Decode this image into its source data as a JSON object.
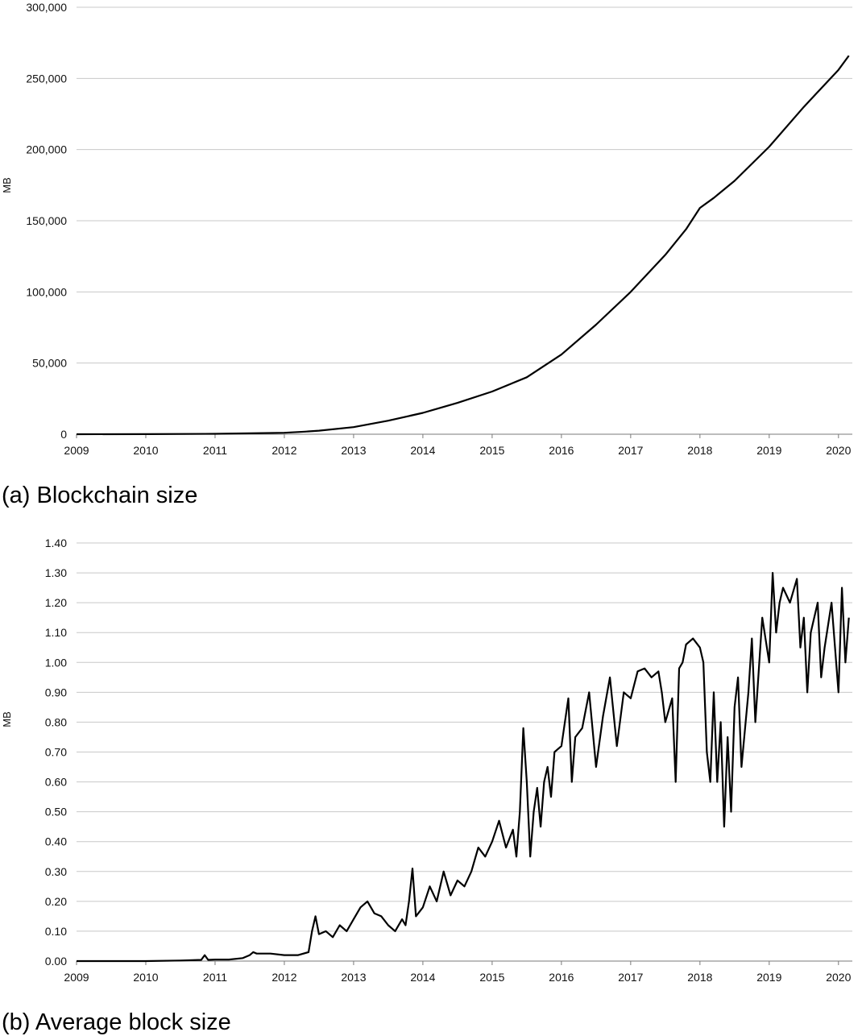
{
  "chart_data": [
    {
      "type": "line",
      "caption": "(a) Blockchain size",
      "ylabel": "MB",
      "xlabel": "",
      "ylim": [
        0,
        300000
      ],
      "xlim": [
        2009,
        2020.2
      ],
      "grid": true,
      "y_ticks": [
        0,
        50000,
        100000,
        150000,
        200000,
        250000,
        300000
      ],
      "y_tick_labels": [
        "0",
        "50,000",
        "100,000",
        "150,000",
        "200,000",
        "250,000",
        "300,000"
      ],
      "x_ticks": [
        2009,
        2010,
        2011,
        2012,
        2013,
        2014,
        2015,
        2016,
        2017,
        2018,
        2019,
        2020
      ],
      "x_tick_labels": [
        "2009",
        "2010",
        "2011",
        "2012",
        "2013",
        "2014",
        "2015",
        "2016",
        "2017",
        "2018",
        "2019",
        "2020"
      ],
      "series": [
        {
          "x": [
            2009,
            2010,
            2011,
            2011.5,
            2012,
            2012.3,
            2012.5,
            2013,
            2013.5,
            2014,
            2014.5,
            2015,
            2015.5,
            2016,
            2016.5,
            2017,
            2017.5,
            2017.8,
            2018,
            2018.2,
            2018.5,
            2019,
            2019.5,
            2020,
            2020.15
          ],
          "y": [
            0,
            50,
            300,
            600,
            1000,
            1800,
            2500,
            5000,
            9500,
            15000,
            22000,
            30000,
            40000,
            56000,
            77000,
            100000,
            126000,
            144000,
            159000,
            166000,
            178000,
            202000,
            230000,
            256000,
            266000
          ]
        }
      ]
    },
    {
      "type": "line",
      "caption": "(b) Average block size",
      "ylabel": "MB",
      "xlabel": "",
      "ylim": [
        0,
        1.4
      ],
      "xlim": [
        2009,
        2020.2
      ],
      "grid": true,
      "y_ticks": [
        0,
        0.1,
        0.2,
        0.3,
        0.4,
        0.5,
        0.6,
        0.7,
        0.8,
        0.9,
        1.0,
        1.1,
        1.2,
        1.3,
        1.4
      ],
      "y_tick_labels": [
        "0.00",
        "0.10",
        "0.20",
        "0.30",
        "0.40",
        "0.50",
        "0.60",
        "0.70",
        "0.80",
        "0.90",
        "1.00",
        "1.10",
        "1.20",
        "1.30",
        "1.40"
      ],
      "x_ticks": [
        2009,
        2010,
        2011,
        2012,
        2013,
        2014,
        2015,
        2016,
        2017,
        2018,
        2019,
        2020
      ],
      "x_tick_labels": [
        "2009",
        "2010",
        "2011",
        "2012",
        "2013",
        "2014",
        "2015",
        "2016",
        "2017",
        "2018",
        "2019",
        "2020"
      ],
      "series": [
        {
          "x": [
            2009,
            2009.5,
            2010,
            2010.5,
            2010.8,
            2010.85,
            2010.9,
            2011,
            2011.2,
            2011.4,
            2011.5,
            2011.55,
            2011.6,
            2011.8,
            2012,
            2012.2,
            2012.35,
            2012.4,
            2012.45,
            2012.5,
            2012.6,
            2012.7,
            2012.8,
            2012.9,
            2013,
            2013.1,
            2013.2,
            2013.3,
            2013.4,
            2013.5,
            2013.6,
            2013.7,
            2013.75,
            2013.8,
            2013.85,
            2013.9,
            2014,
            2014.1,
            2014.2,
            2014.3,
            2014.4,
            2014.5,
            2014.6,
            2014.7,
            2014.8,
            2014.9,
            2015,
            2015.1,
            2015.2,
            2015.3,
            2015.35,
            2015.4,
            2015.45,
            2015.5,
            2015.55,
            2015.6,
            2015.65,
            2015.7,
            2015.75,
            2015.8,
            2015.85,
            2015.9,
            2016,
            2016.05,
            2016.1,
            2016.15,
            2016.2,
            2016.3,
            2016.4,
            2016.5,
            2016.6,
            2016.7,
            2016.8,
            2016.9,
            2017,
            2017.1,
            2017.2,
            2017.3,
            2017.4,
            2017.45,
            2017.5,
            2017.6,
            2017.65,
            2017.7,
            2017.75,
            2017.8,
            2017.9,
            2018,
            2018.05,
            2018.1,
            2018.15,
            2018.2,
            2018.25,
            2018.3,
            2018.35,
            2018.4,
            2018.45,
            2018.5,
            2018.55,
            2018.6,
            2018.7,
            2018.75,
            2018.8,
            2018.9,
            2019,
            2019.05,
            2019.1,
            2019.15,
            2019.2,
            2019.3,
            2019.4,
            2019.45,
            2019.5,
            2019.55,
            2019.6,
            2019.7,
            2019.75,
            2019.8,
            2019.9,
            2020,
            2020.05,
            2020.1,
            2020.15
          ],
          "y": [
            0,
            0,
            0,
            0.002,
            0.004,
            0.02,
            0.004,
            0.005,
            0.005,
            0.01,
            0.02,
            0.03,
            0.025,
            0.025,
            0.02,
            0.02,
            0.03,
            0.1,
            0.15,
            0.09,
            0.1,
            0.08,
            0.12,
            0.1,
            0.14,
            0.18,
            0.2,
            0.16,
            0.15,
            0.12,
            0.1,
            0.14,
            0.12,
            0.2,
            0.31,
            0.15,
            0.18,
            0.25,
            0.2,
            0.3,
            0.22,
            0.27,
            0.25,
            0.3,
            0.38,
            0.35,
            0.4,
            0.47,
            0.38,
            0.44,
            0.35,
            0.5,
            0.78,
            0.6,
            0.35,
            0.5,
            0.58,
            0.45,
            0.6,
            0.65,
            0.55,
            0.7,
            0.72,
            0.8,
            0.88,
            0.6,
            0.75,
            0.78,
            0.9,
            0.65,
            0.82,
            0.95,
            0.72,
            0.9,
            0.88,
            0.97,
            0.98,
            0.95,
            0.97,
            0.9,
            0.8,
            0.88,
            0.6,
            0.98,
            1.0,
            1.06,
            1.08,
            1.05,
            1.0,
            0.7,
            0.6,
            0.9,
            0.6,
            0.8,
            0.45,
            0.75,
            0.5,
            0.85,
            0.95,
            0.65,
            0.9,
            1.08,
            0.8,
            1.15,
            1.0,
            1.3,
            1.1,
            1.2,
            1.25,
            1.2,
            1.28,
            1.05,
            1.15,
            0.9,
            1.1,
            1.2,
            0.95,
            1.05,
            1.2,
            0.9,
            1.25,
            1.0,
            1.15
          ]
        }
      ]
    }
  ]
}
